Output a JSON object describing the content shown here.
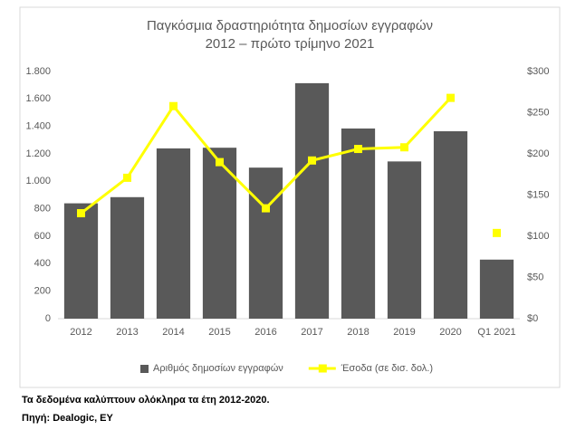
{
  "chart_data": {
    "type": "bar_line",
    "title": [
      "Παγκόσμια δραστηριότητα δημοσίων εγγραφών",
      "2012 – πρώτο τρίμηνο 2021"
    ],
    "categories": [
      "2012",
      "2013",
      "2014",
      "2015",
      "2016",
      "2017",
      "2018",
      "2019",
      "2020",
      "Q1 2021"
    ],
    "series": [
      {
        "name": "Αριθμός δημοσίων εγγραφών",
        "color": "#595959",
        "type": "bar",
        "values": [
          840,
          885,
          1240,
          1245,
          1100,
          1715,
          1385,
          1145,
          1365,
          430
        ]
      },
      {
        "name": "Έσοδα (σε δισ. δολ.)",
        "color": "#ffff00",
        "type": "line",
        "axis": "y2",
        "last_point_disconnected": true,
        "values": [
          128,
          171,
          258,
          190,
          134,
          192,
          206,
          208,
          268,
          104
        ]
      }
    ],
    "ylim": [
      0,
      1800
    ],
    "yticks": [
      0,
      200,
      400,
      600,
      800,
      {
        "value": 1000,
        "label": "1.000"
      },
      {
        "value": 1200,
        "label": "1.200"
      },
      {
        "value": 1400,
        "label": "1.400"
      },
      {
        "value": 1600,
        "label": "1.600"
      },
      {
        "value": 1800,
        "label": "1.800"
      }
    ],
    "y2lim": [
      0,
      300
    ],
    "y2ticks": [
      {
        "value": 0,
        "label": "$0"
      },
      {
        "value": 50,
        "label": "$50"
      },
      {
        "value": 100,
        "label": "$100"
      },
      {
        "value": 150,
        "label": "$150"
      },
      {
        "value": 200,
        "label": "$200"
      },
      {
        "value": 250,
        "label": "$250"
      },
      {
        "value": 300,
        "label": "$300"
      }
    ],
    "grid": false,
    "legend": "bottom"
  },
  "notes": [
    "Τα δεδομένα καλύπτουν ολόκληρα τα έτη 2012-2020.",
    "Πηγή: Dealogic, EY"
  ]
}
